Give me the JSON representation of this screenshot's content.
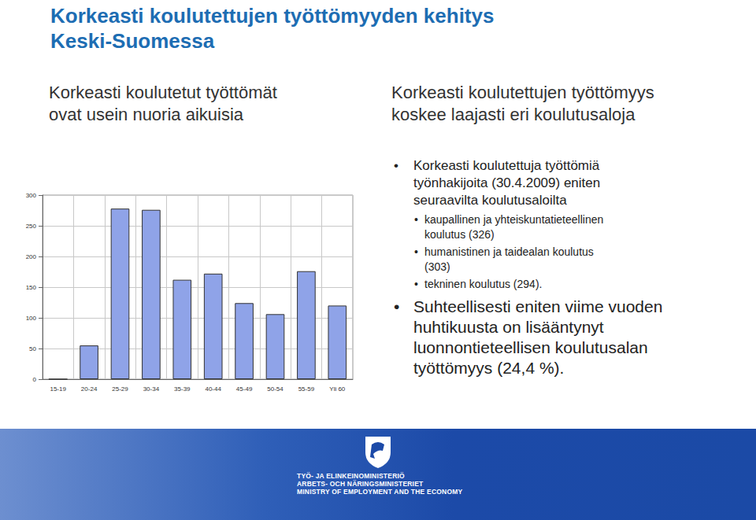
{
  "title": [
    "Korkeasti koulutettujen työttömyyden kehitys",
    "Keski-Suomessa"
  ],
  "left_heading": [
    "Korkeasti koulutetut työttömät",
    "ovat usein nuoria aikuisia"
  ],
  "right_heading": [
    "Korkeasti koulutettujen työttömyys",
    "koskee laajasti eri koulutusaloja"
  ],
  "bullets": [
    {
      "text": [
        "Korkeasti koulutettuja työttömiä",
        "työnhakijoita (30.4.2009) eniten",
        "seuraavilta koulutusaloilta"
      ],
      "sub": [
        [
          "kaupallinen ja yhteiskuntatieteellinen",
          "koulutus (326)"
        ],
        [
          "humanistinen ja taidealan koulutus",
          "(303)"
        ],
        [
          "tekninen koulutus (294)."
        ]
      ]
    },
    {
      "text": [
        "Suhteellisesti eniten viime vuoden",
        "huhtikuusta on lisääntynyt",
        "luonnontieteellisen koulutusalan",
        "työttömyys (24,4 %)."
      ]
    }
  ],
  "footer": [
    "TYÖ- JA ELINKEINOMINISTERIÖ",
    "ARBETS- OCH NÄRINGSMINISTERIET",
    "MINISTRY OF EMPLOYMENT AND THE ECONOMY"
  ],
  "chart_data": {
    "type": "bar",
    "categories": [
      "15-19",
      "20-24",
      "25-29",
      "30-34",
      "35-39",
      "40-44",
      "45-49",
      "50-54",
      "55-59",
      "Yli 60"
    ],
    "values": [
      0,
      55,
      278,
      276,
      162,
      172,
      124,
      106,
      176,
      120
    ],
    "color": "#8fa3e8",
    "ylim": [
      0,
      300
    ],
    "yticks": [
      0,
      50,
      100,
      150,
      200,
      250,
      300
    ],
    "grid": true
  }
}
